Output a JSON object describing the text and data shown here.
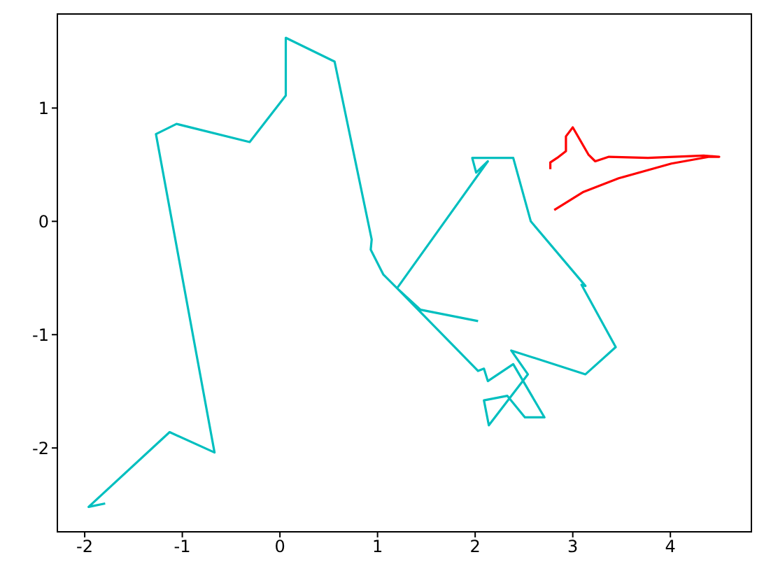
{
  "chart_data": {
    "type": "line",
    "xlim": [
      -2.28,
      4.83
    ],
    "xticks": [
      -2,
      -1,
      0,
      1,
      2,
      3,
      4
    ],
    "ylim": [
      -2.74,
      1.83
    ],
    "yticks": [
      -2,
      -1,
      0,
      1
    ],
    "grid": false,
    "marker": "none",
    "line_style": "solid",
    "series": [
      {
        "color": "#00bfbf",
        "x": [
          -1.79,
          -1.96,
          -1.13,
          -0.67,
          -1.27,
          -1.06,
          -0.31,
          0.06,
          0.06,
          0.56,
          0.94,
          0.93,
          1.06,
          1.2,
          2.03,
          2.09,
          2.13,
          2.39,
          2.71,
          2.51,
          2.33,
          2.09,
          2.14,
          2.54,
          2.37,
          3.13,
          3.44,
          3.09,
          3.13,
          2.57,
          2.39,
          1.97,
          2.01,
          2.13,
          1.2,
          1.44,
          2.03
        ],
        "values": [
          -2.49,
          -2.52,
          -1.86,
          -2.04,
          0.77,
          0.86,
          0.7,
          1.11,
          1.62,
          1.41,
          -0.16,
          -0.25,
          -0.47,
          -0.59,
          -1.32,
          -1.3,
          -1.41,
          -1.26,
          -1.73,
          -1.73,
          -1.54,
          -1.58,
          -1.8,
          -1.35,
          -1.14,
          -1.35,
          -1.11,
          -0.56,
          -0.57,
          0,
          0.56,
          0.56,
          0.43,
          0.53,
          -0.59,
          -0.78,
          -0.88
        ]
      },
      {
        "color": "#ff0000",
        "x": [
          2.77,
          2.77,
          2.84,
          2.93,
          2.93,
          3.0,
          3.16,
          3.23,
          3.37,
          3.77,
          4.34,
          4.5,
          4.4,
          4.01,
          3.47,
          3.11,
          2.81
        ],
        "values": [
          0.46,
          0.52,
          0.56,
          0.62,
          0.75,
          0.83,
          0.59,
          0.53,
          0.57,
          0.56,
          0.58,
          0.57,
          0.57,
          0.51,
          0.38,
          0.26,
          0.1
        ]
      }
    ]
  }
}
